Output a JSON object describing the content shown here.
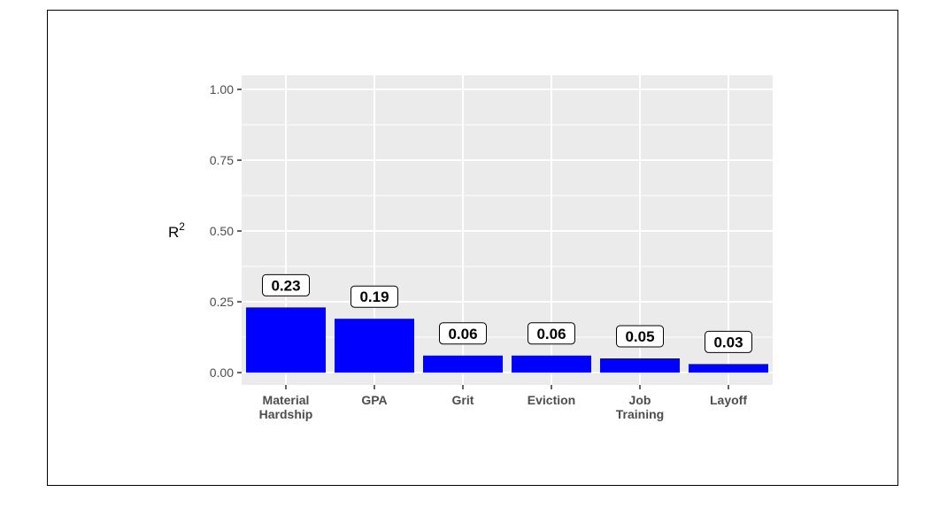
{
  "chart_data": {
    "type": "bar",
    "title": "",
    "xlabel": "",
    "ylabel": "R",
    "ylabel_superscript": "2",
    "ylim": [
      0,
      1.0
    ],
    "yticks": [
      {
        "value": 0.0,
        "label": "0.00"
      },
      {
        "value": 0.25,
        "label": "0.25"
      },
      {
        "value": 0.5,
        "label": "0.50"
      },
      {
        "value": 0.75,
        "label": "0.75"
      },
      {
        "value": 1.0,
        "label": "1.00"
      }
    ],
    "categories": [
      [
        "Material",
        "Hardship"
      ],
      [
        "GPA"
      ],
      [
        "Grit"
      ],
      [
        "Eviction"
      ],
      [
        "Job",
        "Training"
      ],
      [
        "Layoff"
      ]
    ],
    "values": [
      0.23,
      0.19,
      0.06,
      0.06,
      0.05,
      0.03
    ],
    "labels": [
      "0.23",
      "0.19",
      "0.06",
      "0.06",
      "0.05",
      "0.03"
    ],
    "bar_color": "#0000ff",
    "panel_color": "#ebebeb",
    "grid_color": "#ffffff",
    "grid": true,
    "legend": "none"
  }
}
